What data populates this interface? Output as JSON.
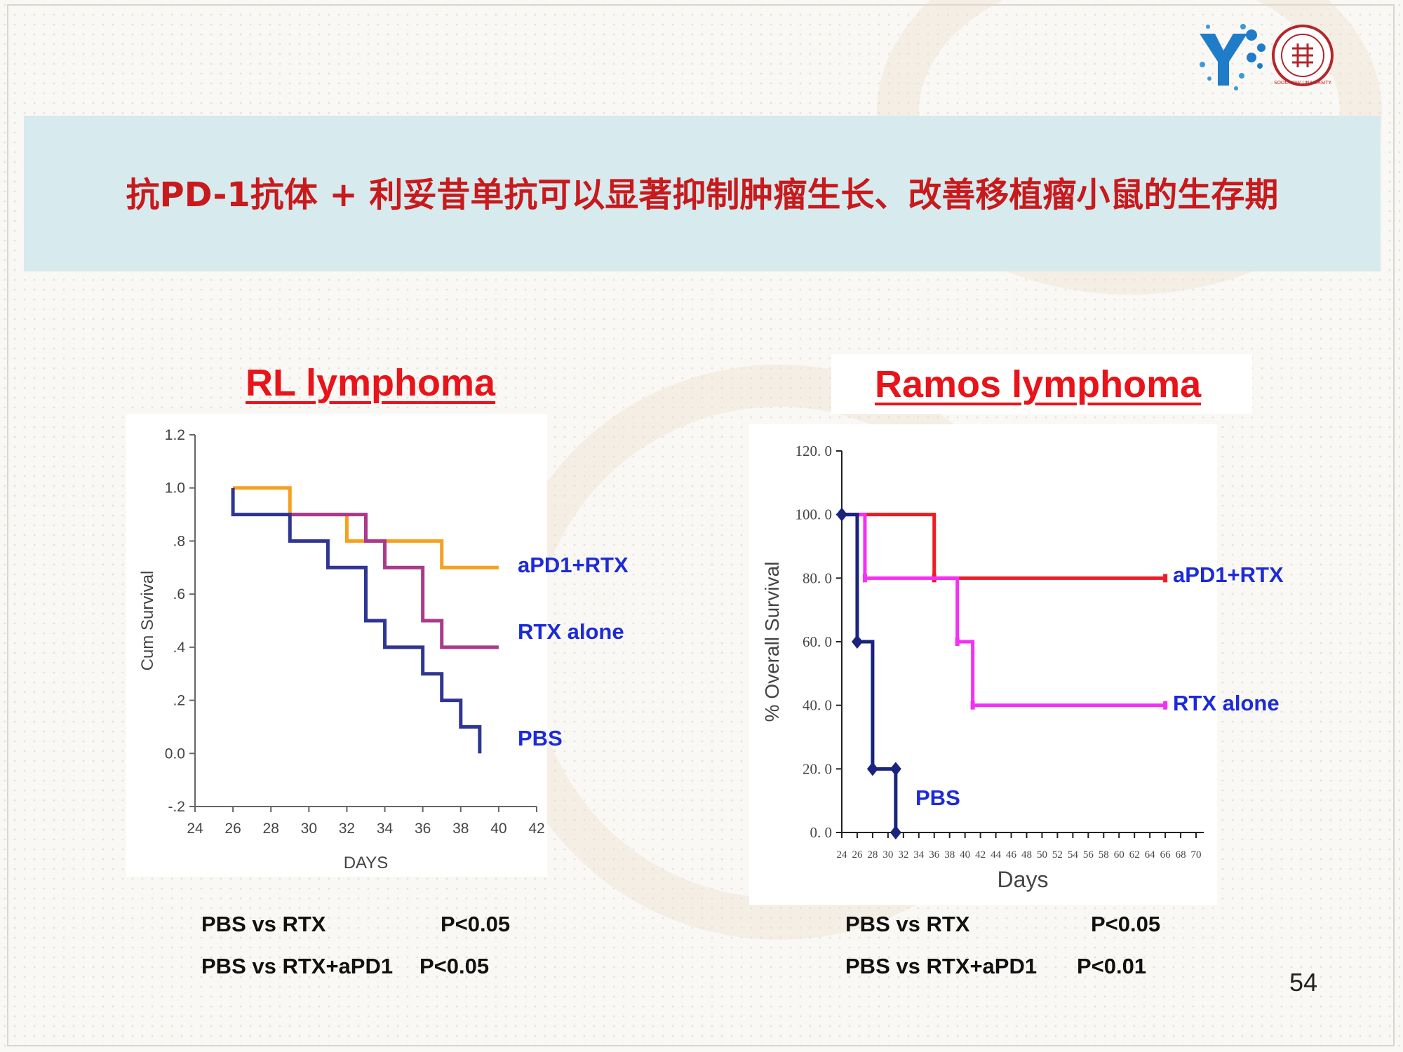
{
  "slide": {
    "title": "抗PD-1抗体 + 利妥昔单抗可以显著抑制肿瘤生长、改善移植瘤小鼠的生存期",
    "page_number": "54",
    "seal_text": "SOOCHOW UNIVERSITY",
    "colors": {
      "title": "#c8191c",
      "banner": "#d7eaed",
      "label": "#1c2ad8",
      "chart_title": "#e8141a"
    }
  },
  "chart_data": [
    {
      "type": "line",
      "title": "RL lymphoma",
      "xlabel": "DAYS",
      "ylabel": "Cum Survival",
      "xlim": [
        24,
        42
      ],
      "ylim": [
        -0.2,
        1.2
      ],
      "x_ticks": [
        "24",
        "26",
        "28",
        "30",
        "32",
        "34",
        "36",
        "38",
        "40",
        "42"
      ],
      "y_ticks": [
        "-.2",
        "0.0",
        ".2",
        ".4",
        ".6",
        ".8",
        "1.0",
        "1.2"
      ],
      "series": [
        {
          "name": "aPD1+RTX",
          "color": "#f7a01f",
          "step": true,
          "x": [
            26,
            29,
            32,
            35,
            37,
            40
          ],
          "y": [
            1.0,
            0.9,
            0.8,
            0.8,
            0.7,
            0.7
          ]
        },
        {
          "name": "RTX alone",
          "color": "#a93a8c",
          "step": true,
          "x": [
            29,
            32,
            33,
            34,
            36,
            37,
            40
          ],
          "y": [
            0.9,
            0.9,
            0.8,
            0.7,
            0.5,
            0.4,
            0.4
          ]
        },
        {
          "name": "PBS",
          "color": "#2e3592",
          "step": true,
          "x": [
            26,
            26,
            29,
            31,
            33,
            34,
            36,
            37,
            38,
            39,
            39
          ],
          "y": [
            1.0,
            0.9,
            0.8,
            0.7,
            0.5,
            0.4,
            0.3,
            0.2,
            0.1,
            0.1,
            0.0
          ]
        }
      ],
      "stats": [
        {
          "comparison": "PBS vs RTX",
          "p": "P<0.05"
        },
        {
          "comparison": "PBS vs RTX+aPD1",
          "p": "P<0.05"
        }
      ]
    },
    {
      "type": "line",
      "title": "Ramos lymphoma",
      "xlabel": "Days",
      "ylabel": "% Overall Survival",
      "xlim": [
        24,
        71
      ],
      "ylim": [
        0,
        120
      ],
      "x_ticks": [
        "24",
        "26",
        "28",
        "30",
        "32",
        "34",
        "36",
        "38",
        "40",
        "42",
        "44",
        "46",
        "48",
        "50",
        "52",
        "54",
        "56",
        "58",
        "60",
        "62",
        "64",
        "66",
        "68",
        "70"
      ],
      "y_ticks": [
        "0. 0",
        "20. 0",
        "40. 0",
        "60. 0",
        "80. 0",
        "100. 0",
        "120. 0"
      ],
      "series": [
        {
          "name": "aPD1+RTX",
          "color": "#ee1c23",
          "step": true,
          "x": [
            24,
            36,
            66
          ],
          "y": [
            100,
            80,
            80
          ]
        },
        {
          "name": "RTX alone",
          "color": "#f52ff5",
          "step": true,
          "x": [
            24,
            27,
            39,
            41,
            66
          ],
          "y": [
            100,
            80,
            60,
            40,
            40
          ]
        },
        {
          "name": "PBS",
          "color": "#1a237e",
          "step": true,
          "x": [
            24,
            26,
            28,
            31,
            31
          ],
          "y": [
            100,
            60,
            20,
            20,
            0
          ]
        }
      ],
      "stats": [
        {
          "comparison": "PBS vs RTX",
          "p": "P<0.05"
        },
        {
          "comparison": "PBS vs RTX+aPD1",
          "p": "P<0.01"
        }
      ]
    }
  ]
}
